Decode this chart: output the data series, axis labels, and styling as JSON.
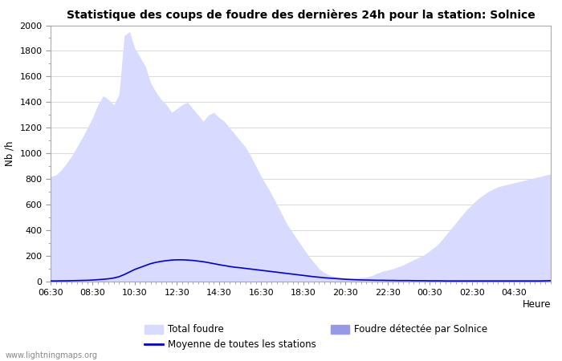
{
  "title": "Statistique des coups de foudre des dernières 24h pour la station: Solnice",
  "xlabel": "Heure",
  "ylabel": "Nb /h",
  "ylim": [
    0,
    2000
  ],
  "yticks": [
    0,
    200,
    400,
    600,
    800,
    1000,
    1200,
    1400,
    1600,
    1800,
    2000
  ],
  "xtick_labels": [
    "06:30",
    "08:30",
    "10:30",
    "12:30",
    "14:30",
    "16:30",
    "18:30",
    "20:30",
    "22:30",
    "00:30",
    "02:30",
    "04:30"
  ],
  "watermark": "www.lightningmaps.org",
  "bg_color": "#ffffff",
  "plot_bg_color": "#ffffff",
  "grid_color": "#cccccc",
  "total_fill_color": "#d8daff",
  "solnice_fill_color": "#9898e8",
  "mean_line_color": "#0000dd",
  "legend_labels": [
    "Total foudre",
    "Moyenne de toutes les stations",
    "Foudre détectée par Solnice"
  ],
  "total_foudre": [
    820,
    830,
    870,
    920,
    980,
    1050,
    1120,
    1200,
    1280,
    1380,
    1450,
    1420,
    1380,
    1460,
    1920,
    1950,
    1820,
    1750,
    1680,
    1550,
    1480,
    1420,
    1380,
    1320,
    1350,
    1380,
    1400,
    1350,
    1300,
    1250,
    1300,
    1320,
    1280,
    1250,
    1200,
    1150,
    1100,
    1050,
    980,
    900,
    820,
    750,
    680,
    600,
    520,
    440,
    380,
    320,
    260,
    200,
    150,
    100,
    70,
    50,
    40,
    35,
    30,
    28,
    30,
    32,
    35,
    45,
    65,
    80,
    90,
    100,
    115,
    130,
    150,
    170,
    190,
    210,
    240,
    270,
    310,
    360,
    410,
    460,
    510,
    560,
    600,
    640,
    670,
    700,
    720,
    740,
    750,
    760,
    770,
    780,
    790,
    800,
    810,
    820,
    830,
    840
  ],
  "solnice": [
    0,
    0,
    0,
    0,
    0,
    0,
    0,
    0,
    0,
    0,
    0,
    0,
    0,
    0,
    0,
    0,
    0,
    0,
    0,
    0,
    0,
    0,
    0,
    0,
    0,
    0,
    0,
    0,
    0,
    0,
    0,
    0,
    0,
    0,
    0,
    0,
    0,
    0,
    0,
    0,
    0,
    0,
    0,
    0,
    0,
    0,
    0,
    0,
    0,
    0,
    0,
    0,
    0,
    0,
    0,
    0,
    0,
    0,
    0,
    0,
    0,
    0,
    0,
    0,
    0,
    0,
    0,
    0,
    0,
    0,
    0,
    0,
    0,
    0,
    0,
    0,
    0,
    0,
    0,
    0,
    0,
    0,
    0,
    0,
    0,
    0,
    0,
    0,
    0,
    0,
    0,
    0,
    0,
    0,
    0,
    0
  ],
  "moyenne": [
    5,
    5,
    6,
    6,
    7,
    8,
    9,
    10,
    12,
    15,
    18,
    22,
    28,
    38,
    55,
    75,
    95,
    110,
    125,
    140,
    150,
    158,
    163,
    168,
    170,
    170,
    168,
    165,
    160,
    155,
    148,
    140,
    132,
    125,
    118,
    112,
    108,
    103,
    98,
    93,
    88,
    83,
    78,
    73,
    68,
    63,
    58,
    53,
    48,
    43,
    38,
    34,
    30,
    27,
    24,
    21,
    18,
    16,
    14,
    13,
    12,
    11,
    10,
    10,
    9,
    9,
    8,
    8,
    8,
    7,
    7,
    7,
    6,
    6,
    6,
    5,
    5,
    5,
    5,
    5,
    5,
    5,
    5,
    5,
    5,
    5,
    5,
    5,
    5,
    5,
    5,
    5,
    5,
    5,
    6,
    7
  ]
}
